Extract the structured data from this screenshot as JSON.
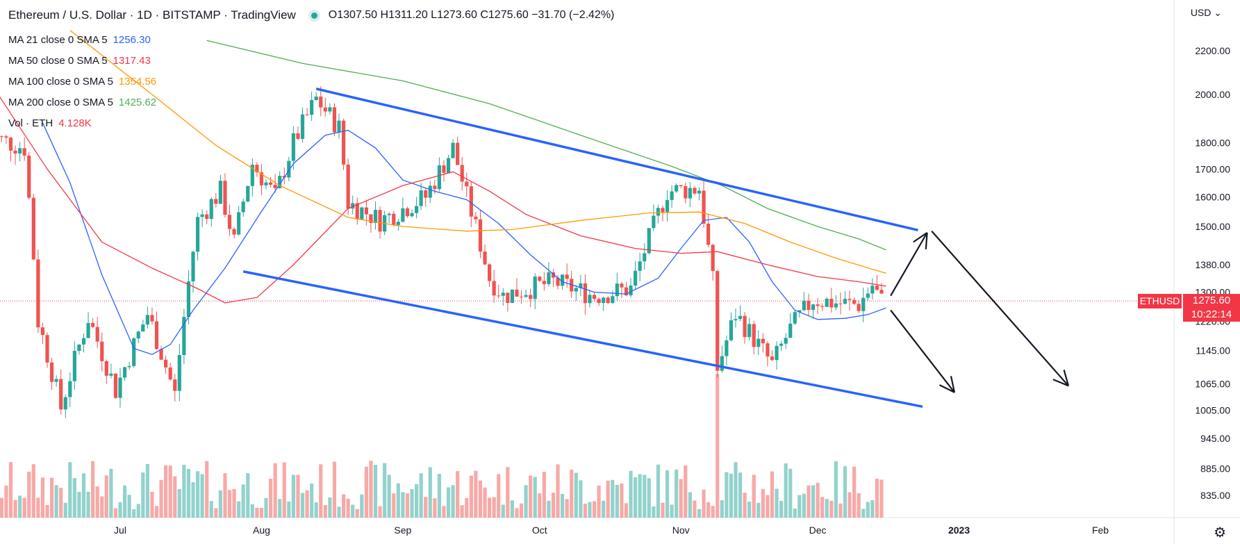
{
  "header": {
    "title": "Ethereum / U.S. Dollar · 1D · BITSTAMP · TradingView",
    "ohlc": "O1307.50  H1311.20  L1273.60  C1275.60  −31.70 (−2.42%)",
    "status_color": "#26a69a"
  },
  "legend": [
    {
      "label": "MA 21 close 0 SMA 5",
      "value": "1256.30",
      "color": "#2962ff"
    },
    {
      "label": "MA 50 close 0 SMA 5",
      "value": "1317.43",
      "color": "#f23645"
    },
    {
      "label": "MA 100 close 0 SMA 5",
      "value": "1354.56",
      "color": "#ff9800"
    },
    {
      "label": "MA 200 close 0 SMA 5",
      "value": "1425.62",
      "color": "#4caf50"
    },
    {
      "label": "Vol · ETH",
      "value": "4.128K",
      "color": "#f23645"
    }
  ],
  "currency_selector": "USD",
  "price_badge": {
    "symbol": "ETHUSD",
    "price": "1275.60",
    "countdown": "10:22:14"
  },
  "icons": {
    "settings": "gear-icon",
    "collapse": "chevron-up-icon"
  },
  "chart_data": {
    "type": "candlestick",
    "y_scale": "log",
    "y_ticks": [
      2200,
      2000,
      1800,
      1700,
      1600,
      1500,
      1380,
      1300,
      1220,
      1145,
      1065,
      1005,
      945,
      885,
      835
    ],
    "y_tick_labels": [
      "2200.00",
      "2000.00",
      "1800.00",
      "1700.00",
      "1600.00",
      "1500.00",
      "1380.00",
      "1300.00",
      "1220.00",
      "1145.00",
      "1065.00",
      "1005.00",
      "945.00",
      "885.00",
      "835.00"
    ],
    "x_labels": [
      "Jul",
      "Aug",
      "Sep",
      "Oct",
      "Nov",
      "Dec",
      "2023",
      "Feb"
    ],
    "x_label_dates": [
      "2022-07-01",
      "2022-08-01",
      "2022-09-01",
      "2022-10-01",
      "2022-11-01",
      "2022-12-01",
      "2023-01-01",
      "2023-02-01"
    ],
    "last_price": 1275.6,
    "up_color": "#26a69a",
    "down_color": "#ef5350",
    "series": [
      {
        "name": "MA 21",
        "color": "#2962ff",
        "points": [
          [
            "2022-06-14",
            1880
          ],
          [
            "2022-06-20",
            1650
          ],
          [
            "2022-06-27",
            1350
          ],
          [
            "2022-07-04",
            1150
          ],
          [
            "2022-07-08",
            1135
          ],
          [
            "2022-07-12",
            1160
          ],
          [
            "2022-07-17",
            1250
          ],
          [
            "2022-07-24",
            1370
          ],
          [
            "2022-08-01",
            1550
          ],
          [
            "2022-08-08",
            1720
          ],
          [
            "2022-08-15",
            1830
          ],
          [
            "2022-08-20",
            1850
          ],
          [
            "2022-08-26",
            1780
          ],
          [
            "2022-09-01",
            1660
          ],
          [
            "2022-09-08",
            1620
          ],
          [
            "2022-09-15",
            1590
          ],
          [
            "2022-09-22",
            1510
          ],
          [
            "2022-09-29",
            1410
          ],
          [
            "2022-10-06",
            1330
          ],
          [
            "2022-10-13",
            1300
          ],
          [
            "2022-10-20",
            1295
          ],
          [
            "2022-10-27",
            1340
          ],
          [
            "2022-11-01",
            1430
          ],
          [
            "2022-11-06",
            1520
          ],
          [
            "2022-11-11",
            1530
          ],
          [
            "2022-11-16",
            1450
          ],
          [
            "2022-11-21",
            1330
          ],
          [
            "2022-11-26",
            1250
          ],
          [
            "2022-12-01",
            1225
          ],
          [
            "2022-12-07",
            1228
          ],
          [
            "2022-12-12",
            1238
          ],
          [
            "2022-12-16",
            1256.3
          ]
        ]
      },
      {
        "name": "MA 50",
        "color": "#f23645",
        "points": [
          [
            "2022-06-01",
            2100
          ],
          [
            "2022-06-15",
            1700
          ],
          [
            "2022-06-27",
            1450
          ],
          [
            "2022-07-08",
            1370
          ],
          [
            "2022-07-18",
            1310
          ],
          [
            "2022-07-24",
            1270
          ],
          [
            "2022-07-31",
            1285
          ],
          [
            "2022-08-08",
            1380
          ],
          [
            "2022-08-20",
            1560
          ],
          [
            "2022-09-01",
            1640
          ],
          [
            "2022-09-12",
            1690
          ],
          [
            "2022-09-20",
            1620
          ],
          [
            "2022-09-28",
            1540
          ],
          [
            "2022-10-10",
            1470
          ],
          [
            "2022-10-22",
            1430
          ],
          [
            "2022-11-01",
            1415
          ],
          [
            "2022-11-09",
            1420
          ],
          [
            "2022-11-20",
            1380
          ],
          [
            "2022-12-01",
            1345
          ],
          [
            "2022-12-10",
            1330
          ],
          [
            "2022-12-16",
            1317.43
          ]
        ]
      },
      {
        "name": "MA 100",
        "color": "#ff9800",
        "points": [
          [
            "2022-06-20",
            2300
          ],
          [
            "2022-07-08",
            2000
          ],
          [
            "2022-07-22",
            1790
          ],
          [
            "2022-08-05",
            1640
          ],
          [
            "2022-08-20",
            1530
          ],
          [
            "2022-09-01",
            1500
          ],
          [
            "2022-09-15",
            1485
          ],
          [
            "2022-09-25",
            1490
          ],
          [
            "2022-10-10",
            1520
          ],
          [
            "2022-10-25",
            1545
          ],
          [
            "2022-11-05",
            1548
          ],
          [
            "2022-11-15",
            1510
          ],
          [
            "2022-11-25",
            1450
          ],
          [
            "2022-12-05",
            1400
          ],
          [
            "2022-12-16",
            1354.56
          ]
        ]
      },
      {
        "name": "MA 200",
        "color": "#4caf50",
        "points": [
          [
            "2022-07-20",
            2250
          ],
          [
            "2022-08-10",
            2140
          ],
          [
            "2022-09-01",
            2060
          ],
          [
            "2022-09-20",
            1960
          ],
          [
            "2022-10-10",
            1830
          ],
          [
            "2022-10-30",
            1710
          ],
          [
            "2022-11-10",
            1640
          ],
          [
            "2022-11-20",
            1560
          ],
          [
            "2022-12-01",
            1500
          ],
          [
            "2022-12-10",
            1460
          ],
          [
            "2022-12-16",
            1425.62
          ]
        ]
      }
    ],
    "candles_volume_max_label": "",
    "drawings": [
      {
        "type": "trendline",
        "color": "#2962ff",
        "from": [
          "2022-08-13",
          2025
        ],
        "to": [
          "2022-12-23",
          1488
        ]
      },
      {
        "type": "trendline",
        "color": "#2962ff",
        "from": [
          "2022-07-28",
          1360
        ],
        "to": [
          "2022-12-24",
          1013
        ]
      },
      {
        "type": "arrow",
        "color": "#131722",
        "from": [
          "2022-12-17",
          1290
        ],
        "to": [
          "2022-12-25",
          1480
        ]
      },
      {
        "type": "arrow",
        "color": "#131722",
        "from": [
          "2022-12-26",
          1485
        ],
        "to": [
          "2023-01-25",
          1060
        ]
      },
      {
        "type": "arrow",
        "color": "#131722",
        "from": [
          "2022-12-17",
          1250
        ],
        "to": [
          "2022-12-31",
          1045
        ]
      }
    ]
  }
}
